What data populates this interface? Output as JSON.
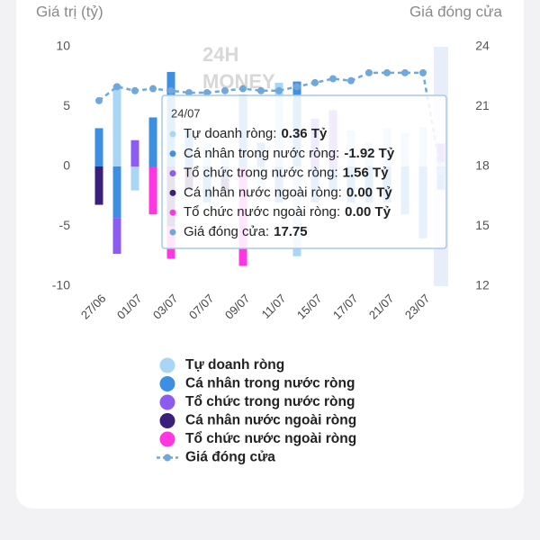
{
  "chart_data": {
    "type": "bar",
    "stacked": true,
    "y_label": "Giá trị (tỷ)",
    "y2_label": "Giá đóng cửa",
    "watermark": [
      "24H",
      "MONEY"
    ],
    "categories": [
      "27/06",
      null,
      "01/07",
      null,
      "03/07",
      null,
      "07/07",
      null,
      "09/07",
      null,
      "11/07",
      null,
      "15/07",
      null,
      "17/07",
      null,
      "21/07",
      null,
      "23/07",
      null
    ],
    "ylim": [
      -10,
      10
    ],
    "yticks": [
      -10,
      -5,
      0,
      5,
      10
    ],
    "y2lim": [
      12,
      24
    ],
    "y2ticks": [
      12,
      15,
      18,
      21,
      24
    ],
    "highlight_index": 19,
    "series": [
      {
        "name": "Tự doanh ròng",
        "color": "#a9d6f5",
        "values": [
          0,
          6.8,
          -2,
          0,
          0,
          0,
          2,
          1,
          0,
          -2,
          7,
          -7.5,
          0,
          0,
          3,
          2,
          3.2,
          2.8,
          3.3,
          0.36
        ]
      },
      {
        "name": "Cá nhân trong nước ròng",
        "color": "#3d8fe2",
        "values": [
          3.2,
          -4.3,
          0,
          4.1,
          7.9,
          3,
          -3,
          -1,
          6,
          2,
          -3,
          7.1,
          -3,
          -2,
          -3,
          -3,
          -3,
          -4,
          -6,
          -1.92
        ]
      },
      {
        "name": "Tổ chức trong nước ròng",
        "color": "#8c5cf0",
        "values": [
          0,
          -3,
          2.2,
          0,
          0,
          0,
          0,
          0,
          0,
          0,
          0,
          0,
          4,
          4.7,
          0,
          0,
          0,
          0,
          0,
          1.56
        ]
      },
      {
        "name": "Cá nhân nước ngoài ròng",
        "color": "#3b1f7c",
        "values": [
          -3.2,
          0,
          0,
          0,
          -5,
          -2,
          0,
          -1,
          0,
          0,
          0,
          0,
          0,
          0,
          0,
          0,
          0,
          0,
          0,
          0
        ]
      },
      {
        "name": "Tổ chức nước ngoài ròng",
        "color": "#ff36e2",
        "values": [
          0,
          0,
          0,
          -4,
          -2.7,
          0,
          0,
          0,
          -8.3,
          0,
          0,
          0,
          0,
          0,
          0,
          0,
          0,
          0,
          0,
          0
        ]
      },
      {
        "name": "Giá đóng cửa",
        "color": "#6fa8dc",
        "type": "line",
        "axis": "y2",
        "values": [
          21.3,
          22.0,
          21.8,
          21.9,
          21.8,
          21.7,
          21.7,
          21.8,
          21.9,
          21.8,
          21.8,
          22.0,
          22.2,
          22.4,
          22.3,
          22.7,
          22.7,
          22.7,
          22.7,
          17.75
        ]
      }
    ],
    "tooltip": {
      "title": "24/07",
      "labels": [
        "Tự doanh ròng:",
        "Cá nhân trong nước ròng:",
        "Tổ chức trong nước ròng:",
        "Cá nhân nước ngoài ròng:",
        "Tổ chức nước ngoài ròng:",
        "Giá đóng cửa:"
      ],
      "value_labels": [
        "0.36 Tỷ",
        "-1.92 Tỷ",
        "1.56 Tỷ",
        "0.00 Tỷ",
        "0.00 Tỷ",
        "17.75"
      ]
    }
  }
}
